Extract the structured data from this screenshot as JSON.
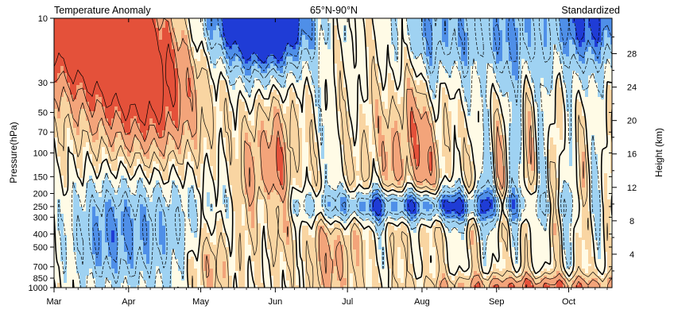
{
  "chart_data": {
    "type": "heatmap",
    "title_left": "Temperature Anomaly",
    "title_center": "65°N-90°N",
    "title_right": "Standardized",
    "ylabel_left": "Pressure(hPa)",
    "ylabel_right": "Height (km)",
    "x_ticks": [
      "Mar",
      "Apr",
      "May",
      "Jun",
      "Jul",
      "Aug",
      "Sep",
      "Oct"
    ],
    "x_tick_days": [
      0,
      31,
      61,
      92,
      122,
      153,
      184,
      214
    ],
    "x_range_days": [
      0,
      232
    ],
    "y_scale": "log-pressure",
    "y_range_hPa": [
      1000,
      10
    ],
    "y_ticks_hPa": [
      10,
      30,
      50,
      70,
      100,
      150,
      200,
      250,
      300,
      400,
      500,
      700,
      850,
      1000
    ],
    "y_ticks_labels": [
      "10",
      "30",
      "50",
      "70",
      "100",
      "150",
      "200",
      "250",
      "300",
      "400",
      "500",
      "700",
      "850",
      "1000"
    ],
    "height_ticks_km": [
      4,
      8,
      12,
      16,
      20,
      24,
      28
    ],
    "height_ticks_labels": [
      "4",
      "8",
      "12",
      "16",
      "20",
      "24",
      "28"
    ],
    "scale_height_km": 7.0,
    "colors": {
      "strong_negative": "#1f3cd6",
      "negative": "#4f8fe8",
      "weak_negative": "#9fd2f2",
      "neutral": "#fffbe6",
      "weak_positive": "#f9d5a2",
      "positive": "#f3a47a",
      "strong_positive": "#e4513a"
    },
    "approx_regions": [
      {
        "days": [
          0,
          62
        ],
        "hPa": [
          10,
          120
        ],
        "sign": "positive",
        "peak": "strong_positive near 10 hPa in early March"
      },
      {
        "days": [
          0,
          62
        ],
        "hPa": [
          150,
          1000
        ],
        "sign": "negative",
        "peak": "weak to moderate negative"
      },
      {
        "days": [
          62,
          232
        ],
        "hPa": [
          10,
          50
        ],
        "sign": "negative",
        "peak": "strong negative at 10 hPa in May, June, October"
      },
      {
        "days": [
          85,
          100
        ],
        "hPa": [
          60,
          250
        ],
        "sign": "positive",
        "peak": "moderate positive"
      },
      {
        "days": [
          137,
          158
        ],
        "hPa": [
          40,
          220
        ],
        "sign": "positive",
        "peak": "moderate positive"
      },
      {
        "days": [
          105,
          160
        ],
        "hPa": [
          220,
          320
        ],
        "sign": "negative",
        "peak": "strong negative near 250 hPa"
      },
      {
        "days": [
          104,
          125
        ],
        "hPa": [
          500,
          1000
        ],
        "sign": "positive",
        "peak": "moderate positive"
      },
      {
        "days": [
          172,
          232
        ],
        "hPa": [
          70,
          900
        ],
        "sign": "mixed",
        "peak": "alternating positive and negative"
      },
      {
        "days": [
          150,
          232
        ],
        "hPa": [
          900,
          1000
        ],
        "sign": "positive",
        "peak": "strong positive near surface"
      }
    ]
  }
}
